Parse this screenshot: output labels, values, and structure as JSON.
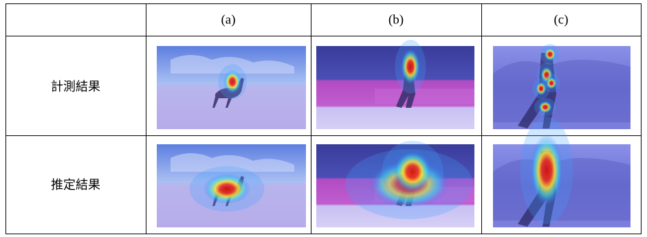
{
  "table": {
    "columns": [
      "(a)",
      "(b)",
      "(c)"
    ],
    "rows": [
      {
        "label": "計測結果"
      },
      {
        "label": "推定結果"
      }
    ]
  }
}
